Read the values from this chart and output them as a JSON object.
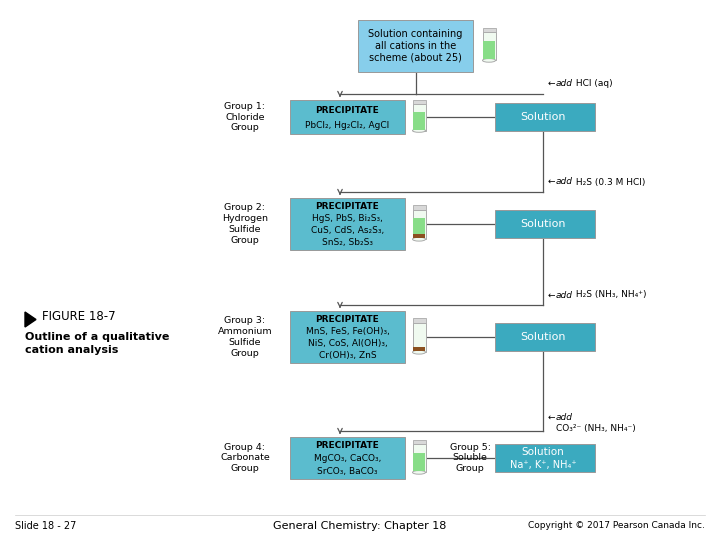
{
  "bg_color": "#ffffff",
  "c_top_box": "#87CEEB",
  "c_ppt": "#5BB8D4",
  "c_sol": "#5BB8D4",
  "c_sol_dark": "#2E9BB5",
  "top_box": "Solution containing\nall cations in the\nscheme (about 25)",
  "group1_label": "Group 1:\nChloride\nGroup",
  "group1_ppt": "PRECIPITATE\nPbCl₂, Hg₂Cl₂, AgCl",
  "group1_sol": "Solution",
  "group2_label": "Group 2:\nHydrogen\nSulfide\nGroup",
  "group2_ppt": "PRECIPITATE\nHgS, PbS, Bi₂S₃,\nCuS, CdS, As₂S₃,\nSnS₂, Sb₂S₃",
  "group2_sol": "Solution",
  "group3_label": "Group 3:\nAmmonium\nSulfide\nGroup",
  "group3_ppt": "PRECIPITATE\nMnS, FeS, Fe(OH)₃,\nNiS, CoS, Al(OH)₃,\nCr(OH)₃, ZnS",
  "group3_sol": "Solution",
  "group4_label": "Group 4:\nCarbonate\nGroup",
  "group4_ppt": "PRECIPITATE\nMgCO₃, CaCO₃,\nSrCO₃, BaCO₃",
  "group5_label": "Group 5:\nSoluble\nGroup",
  "group5_sol": "Solution\nNa⁺, K⁺, NH₄⁺",
  "add1_italic": "add",
  "add1_rest": " HCl (aq)",
  "add2_italic": "add",
  "add2_rest": " H₂S (0.3 M HCl)",
  "add3_italic": "add",
  "add3_rest": " H₂S (NH₃, NH₄⁺)",
  "add4_italic": "add",
  "add4_rest": "\nCO₃²⁻ (NH₃, NH₄⁻)",
  "title_left": "FIGURE 18-7",
  "subtitle_left": "Outline of a qualitative\ncation analysis",
  "footer_left": "Slide 18 - 27",
  "footer_center": "General Chemistry: Chapter 18",
  "footer_right": "Copyright © 2017 Pearson Canada Inc."
}
